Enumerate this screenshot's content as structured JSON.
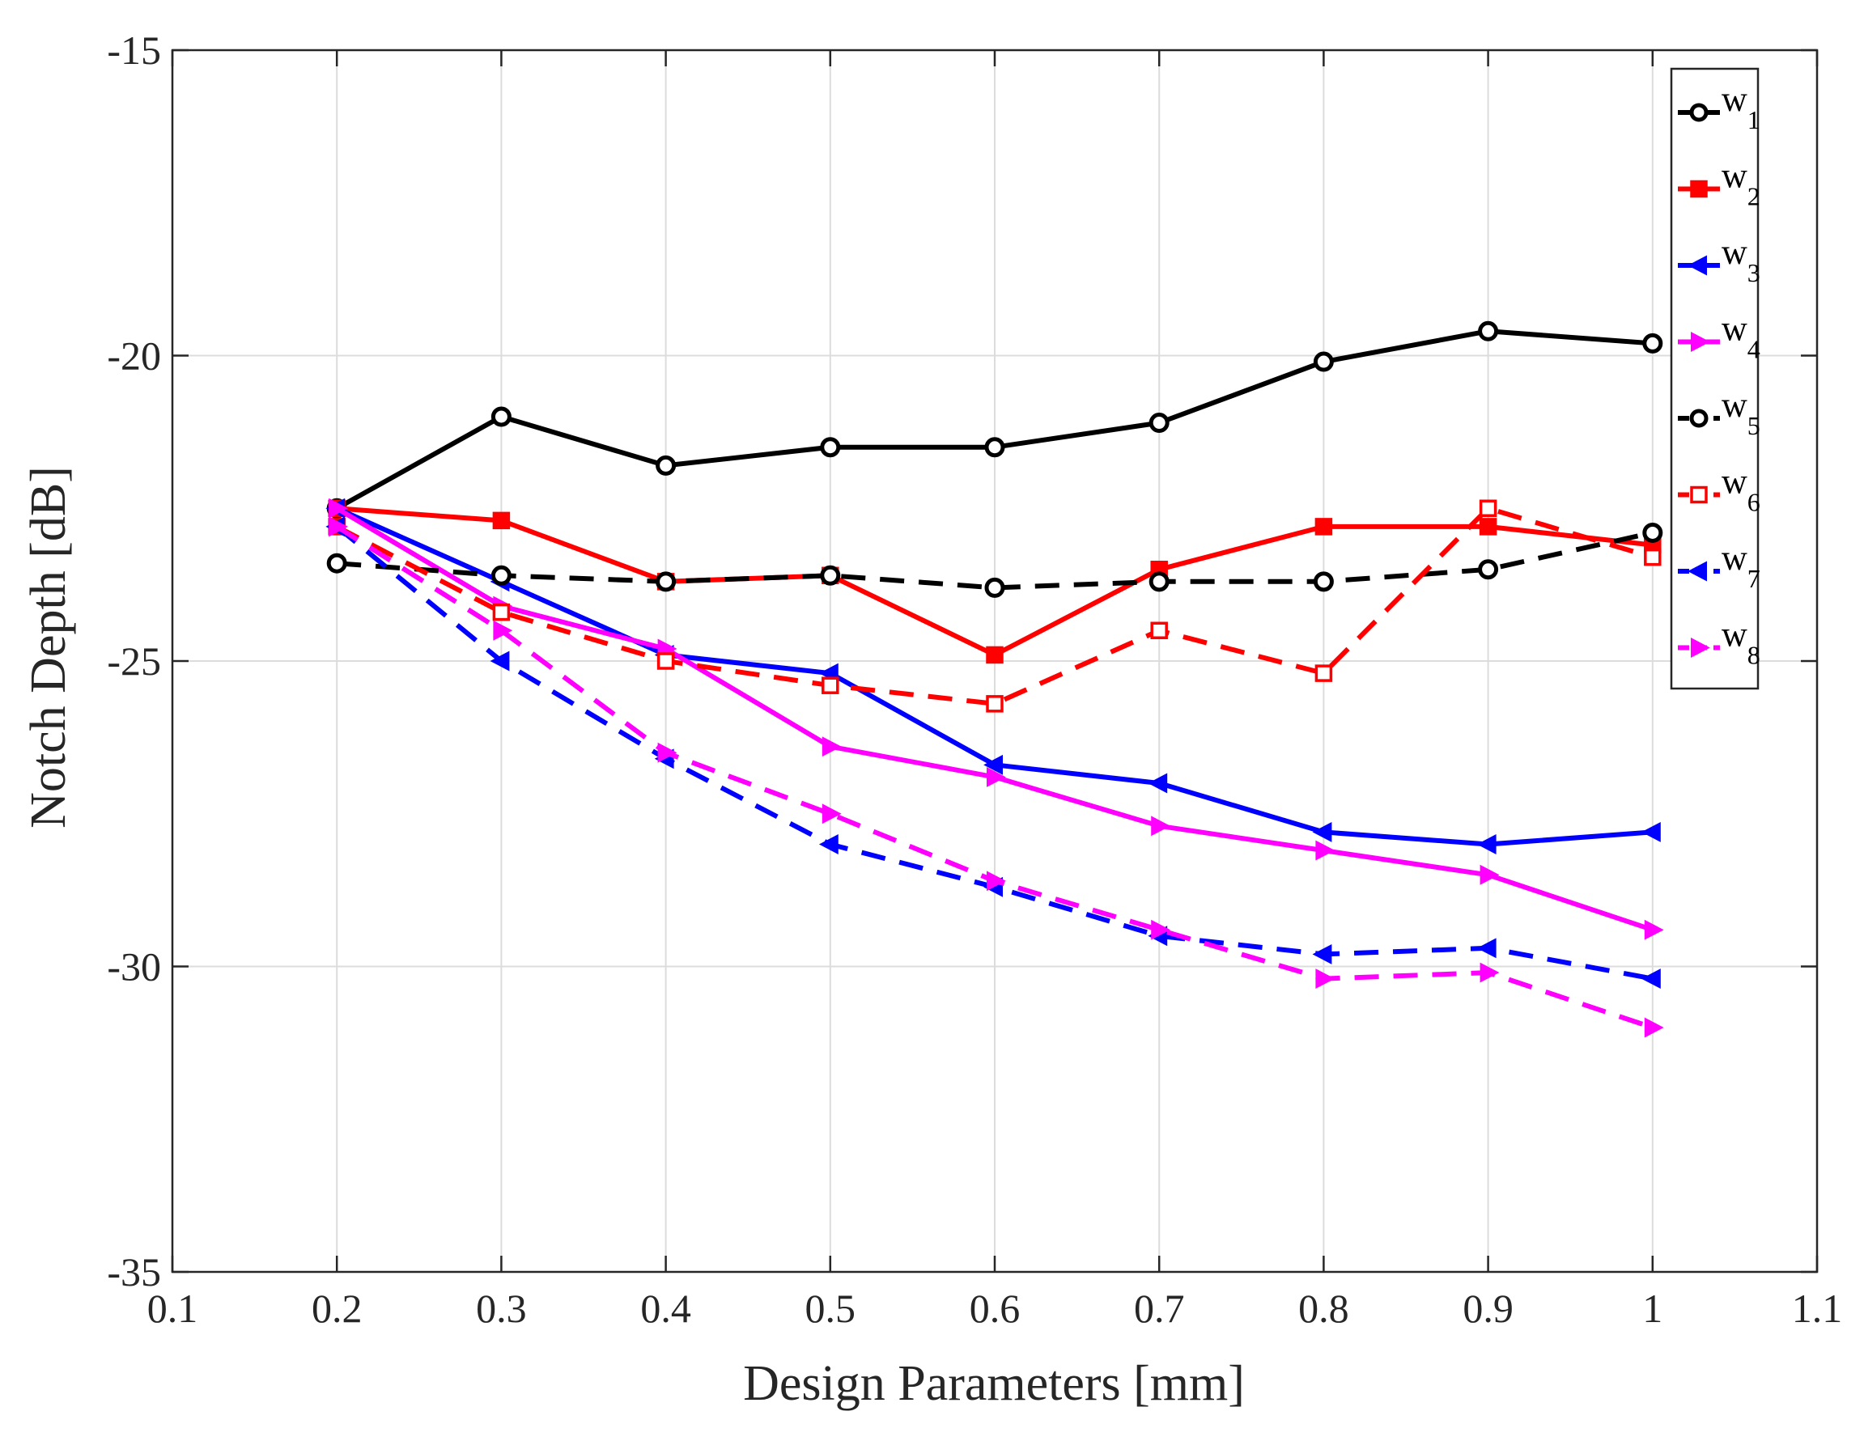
{
  "chart_data": {
    "type": "line",
    "title": "",
    "xlabel": "Design Parameters [mm]",
    "ylabel": "Notch Depth [dB]",
    "xlim": [
      0.1,
      1.1
    ],
    "ylim": [
      -35,
      -15
    ],
    "xticks": [
      0.1,
      0.2,
      0.3,
      0.4,
      0.5,
      0.6,
      0.7,
      0.8,
      0.9,
      1,
      1.1
    ],
    "xtick_labels": [
      "0.1",
      "0.2",
      "0.3",
      "0.4",
      "0.5",
      "0.6",
      "0.7",
      "0.8",
      "0.9",
      "1",
      "1.1"
    ],
    "yticks": [
      -35,
      -30,
      -25,
      -20,
      -15
    ],
    "ytick_labels": [
      "-35",
      "-30",
      "-25",
      "-20",
      "-15"
    ],
    "grid": true,
    "legend_position": "top-right",
    "x": [
      0.2,
      0.3,
      0.4,
      0.5,
      0.6,
      0.7,
      0.8,
      0.9,
      1.0
    ],
    "series": [
      {
        "name": "w1",
        "label_main": "w",
        "label_sub": "1",
        "color": "#000000",
        "dash": "solid",
        "marker": "circle",
        "values": [
          -22.5,
          -21.0,
          -21.8,
          -21.5,
          -21.5,
          -21.1,
          -20.1,
          -19.6,
          -19.8
        ]
      },
      {
        "name": "w2",
        "label_main": "w",
        "label_sub": "2",
        "color": "#ff0000",
        "dash": "solid",
        "marker": "square",
        "values": [
          -22.5,
          -22.7,
          -23.7,
          -23.6,
          -24.9,
          -23.5,
          -22.8,
          -22.8,
          -23.1
        ]
      },
      {
        "name": "w3",
        "label_main": "w",
        "label_sub": "3",
        "color": "#0000ff",
        "dash": "solid",
        "marker": "triangle-left",
        "values": [
          -22.5,
          -23.7,
          -24.9,
          -25.2,
          -26.7,
          -27.0,
          -27.8,
          -28.0,
          -27.8
        ]
      },
      {
        "name": "w4",
        "label_main": "w",
        "label_sub": "4",
        "color": "#ff00ff",
        "dash": "solid",
        "marker": "triangle-right",
        "values": [
          -22.5,
          -24.1,
          -24.8,
          -26.4,
          -26.9,
          -27.7,
          -28.1,
          -28.5,
          -29.4
        ]
      },
      {
        "name": "w5",
        "label_main": "w",
        "label_sub": "5",
        "color": "#000000",
        "dash": "dashed",
        "marker": "circle",
        "values": [
          -23.4,
          -23.6,
          -23.7,
          -23.6,
          -23.8,
          -23.7,
          -23.7,
          -23.5,
          -22.9
        ]
      },
      {
        "name": "w6",
        "label_main": "w",
        "label_sub": "6",
        "color": "#ff0000",
        "dash": "dashed",
        "marker": "square",
        "values": [
          -22.8,
          -24.2,
          -25.0,
          -25.4,
          -25.7,
          -24.5,
          -25.2,
          -22.5,
          -23.3
        ]
      },
      {
        "name": "w7",
        "label_main": "w",
        "label_sub": "7",
        "color": "#0000ff",
        "dash": "dashed",
        "marker": "triangle-left",
        "values": [
          -22.8,
          -25.0,
          -26.6,
          -28.0,
          -28.7,
          -29.5,
          -29.8,
          -29.7,
          -30.2
        ]
      },
      {
        "name": "w8",
        "label_main": "w",
        "label_sub": "8",
        "color": "#ff00ff",
        "dash": "dashed",
        "marker": "triangle-right",
        "values": [
          -22.8,
          -24.5,
          -26.5,
          -27.5,
          -28.6,
          -29.4,
          -30.2,
          -30.1,
          -31.0
        ]
      }
    ]
  }
}
